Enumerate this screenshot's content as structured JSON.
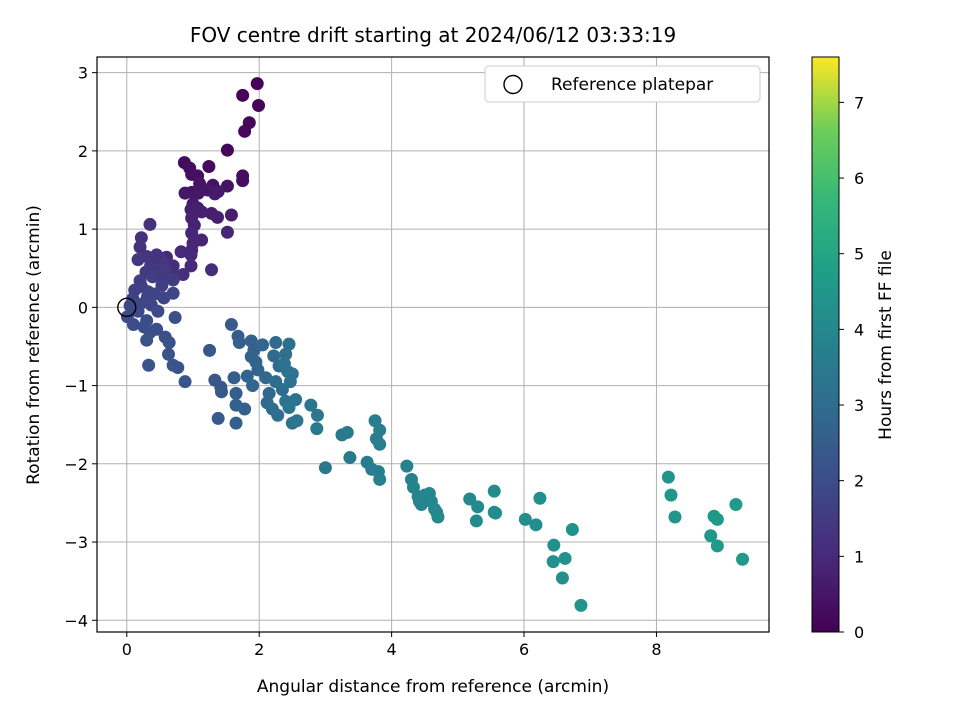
{
  "chart_data": {
    "type": "scatter",
    "title": "FOV centre drift starting at 2024/06/12 03:33:19",
    "xlabel": "Angular distance from reference (arcmin)",
    "ylabel": "Rotation from reference (arcmin)",
    "xlim": [
      -0.45,
      9.7
    ],
    "ylim": [
      -4.15,
      3.2
    ],
    "xticks": [
      0,
      2,
      4,
      6,
      8
    ],
    "yticks": [
      3,
      2,
      1,
      0,
      -1,
      -2,
      -3,
      -4
    ],
    "xtick_labels": [
      "0",
      "2",
      "4",
      "6",
      "8"
    ],
    "ytick_labels": [
      "3",
      "2",
      "1",
      "0",
      "−1",
      "−2",
      "−3",
      "−4"
    ],
    "grid": true,
    "legend": {
      "placement": "top-right",
      "entries": [
        "Reference platepar"
      ]
    },
    "colorbar": {
      "label": "Hours from first FF file",
      "colormap": "viridis",
      "range": [
        0,
        7.6
      ],
      "ticks": [
        0,
        1,
        2,
        3,
        4,
        5,
        6,
        7
      ],
      "tick_labels": [
        "0",
        "1",
        "2",
        "3",
        "4",
        "5",
        "6",
        "7"
      ]
    },
    "reference_point": {
      "x": 0,
      "y": 0
    },
    "points": [
      [
        1.97,
        2.86,
        0.05
      ],
      [
        1.75,
        2.71,
        0.1
      ],
      [
        1.99,
        2.58,
        0.12
      ],
      [
        1.85,
        2.36,
        0.15
      ],
      [
        1.78,
        2.25,
        0.17
      ],
      [
        1.52,
        2.01,
        0.2
      ],
      [
        1.24,
        1.8,
        0.22
      ],
      [
        0.87,
        1.85,
        0.25
      ],
      [
        0.95,
        1.78,
        0.28
      ],
      [
        1.75,
        1.68,
        0.3
      ],
      [
        0.98,
        1.7,
        0.32
      ],
      [
        1.75,
        1.62,
        0.35
      ],
      [
        1.07,
        1.68,
        0.37
      ],
      [
        1.3,
        1.56,
        0.4
      ],
      [
        1.52,
        1.55,
        0.42
      ],
      [
        1.1,
        1.58,
        0.45
      ],
      [
        0.98,
        1.47,
        0.47
      ],
      [
        0.88,
        1.46,
        0.5
      ],
      [
        1.08,
        1.46,
        0.52
      ],
      [
        1.38,
        1.48,
        0.55
      ],
      [
        1.22,
        1.5,
        0.57
      ],
      [
        1.33,
        1.45,
        0.6
      ],
      [
        1.0,
        1.32,
        0.62
      ],
      [
        1.07,
        1.27,
        0.65
      ],
      [
        1.28,
        1.2,
        0.67
      ],
      [
        1.58,
        1.18,
        0.7
      ],
      [
        0.97,
        1.25,
        0.72
      ],
      [
        1.37,
        1.15,
        0.75
      ],
      [
        1.13,
        1.22,
        0.77
      ],
      [
        0.98,
        1.14,
        0.8
      ],
      [
        1.02,
        1.05,
        0.82
      ],
      [
        1.52,
        0.96,
        0.85
      ],
      [
        0.98,
        0.95,
        0.87
      ],
      [
        1.13,
        0.86,
        0.9
      ],
      [
        1.0,
        0.82,
        0.92
      ],
      [
        0.98,
        0.73,
        0.95
      ],
      [
        0.97,
        0.67,
        0.97
      ],
      [
        0.82,
        0.71,
        1.0
      ],
      [
        0.6,
        0.64,
        1.02
      ],
      [
        0.97,
        0.53,
        1.05
      ],
      [
        0.7,
        0.53,
        1.07
      ],
      [
        1.28,
        0.48,
        1.1
      ],
      [
        0.85,
        0.42,
        1.12
      ],
      [
        0.73,
        0.4,
        1.15
      ],
      [
        0.55,
        0.35,
        1.17
      ],
      [
        0.35,
        1.06,
        1.2
      ],
      [
        0.22,
        0.89,
        1.22
      ],
      [
        0.2,
        0.77,
        1.25
      ],
      [
        0.45,
        0.67,
        1.27
      ],
      [
        0.5,
        0.62,
        1.3
      ],
      [
        0.3,
        0.65,
        1.32
      ],
      [
        0.55,
        0.55,
        1.35
      ],
      [
        0.36,
        0.53,
        1.37
      ],
      [
        0.17,
        0.61,
        1.4
      ],
      [
        0.42,
        0.48,
        1.42
      ],
      [
        0.29,
        0.45,
        1.45
      ],
      [
        0.58,
        0.46,
        1.47
      ],
      [
        0.5,
        0.4,
        1.5
      ],
      [
        0.7,
        0.35,
        1.52
      ],
      [
        0.39,
        0.39,
        1.55
      ],
      [
        0.2,
        0.34,
        1.57
      ],
      [
        0.22,
        0.27,
        1.6
      ],
      [
        0.53,
        0.28,
        1.62
      ],
      [
        0.12,
        0.22,
        1.65
      ],
      [
        0.32,
        0.2,
        1.67
      ],
      [
        0.09,
        0.11,
        1.7
      ],
      [
        0.31,
        0.13,
        1.72
      ],
      [
        0.56,
        0.12,
        1.75
      ],
      [
        0.42,
        0.17,
        1.77
      ],
      [
        0.7,
        0.18,
        1.8
      ],
      [
        0.37,
        0.03,
        1.82
      ],
      [
        0.2,
        0.04,
        1.85
      ],
      [
        0.05,
        0.02,
        1.87
      ],
      [
        0.17,
        -0.05,
        1.9
      ],
      [
        0.47,
        -0.05,
        1.92
      ],
      [
        0.01,
        -0.12,
        1.95
      ],
      [
        0.3,
        -0.17,
        1.97
      ],
      [
        0.1,
        -0.22,
        2.0
      ],
      [
        0.26,
        -0.25,
        2.02
      ],
      [
        0.45,
        -0.28,
        2.05
      ],
      [
        0.35,
        -0.32,
        2.07
      ],
      [
        0.58,
        -0.38,
        2.1
      ],
      [
        0.73,
        -0.13,
        2.12
      ],
      [
        0.3,
        -0.42,
        2.15
      ],
      [
        0.64,
        -0.45,
        2.17
      ],
      [
        0.63,
        -0.6,
        2.2
      ],
      [
        0.33,
        -0.74,
        2.22
      ],
      [
        0.77,
        -0.77,
        2.25
      ],
      [
        0.7,
        -0.74,
        2.27
      ],
      [
        0.88,
        -0.95,
        2.3
      ],
      [
        1.25,
        -0.55,
        2.32
      ],
      [
        1.33,
        -0.93,
        2.35
      ],
      [
        1.42,
        -1.02,
        2.37
      ],
      [
        1.43,
        -1.08,
        2.4
      ],
      [
        1.38,
        -1.42,
        2.42
      ],
      [
        1.58,
        -0.22,
        2.45
      ],
      [
        1.68,
        -0.37,
        2.47
      ],
      [
        1.7,
        -0.45,
        2.5
      ],
      [
        1.62,
        -0.9,
        2.52
      ],
      [
        1.65,
        -1.1,
        2.55
      ],
      [
        1.65,
        -1.25,
        2.57
      ],
      [
        1.65,
        -1.48,
        2.6
      ],
      [
        1.78,
        -1.3,
        2.62
      ],
      [
        1.88,
        -0.43,
        2.65
      ],
      [
        1.92,
        -0.55,
        2.67
      ],
      [
        1.88,
        -0.63,
        2.7
      ],
      [
        1.95,
        -0.7,
        2.72
      ],
      [
        1.82,
        -0.88,
        2.75
      ],
      [
        1.98,
        -0.8,
        2.77
      ],
      [
        1.9,
        -1.0,
        2.8
      ],
      [
        2.05,
        -0.48,
        2.82
      ],
      [
        2.1,
        -0.9,
        2.85
      ],
      [
        2.15,
        -1.1,
        2.87
      ],
      [
        2.12,
        -1.22,
        2.9
      ],
      [
        2.25,
        -0.45,
        2.92
      ],
      [
        2.22,
        -0.62,
        2.95
      ],
      [
        2.3,
        -0.75,
        2.97
      ],
      [
        2.25,
        -0.95,
        3.0
      ],
      [
        2.35,
        -1.05,
        3.02
      ],
      [
        2.2,
        -1.3,
        3.05
      ],
      [
        2.28,
        -1.38,
        3.07
      ],
      [
        2.45,
        -0.47,
        3.1
      ],
      [
        2.4,
        -0.6,
        3.12
      ],
      [
        2.38,
        -0.72,
        3.15
      ],
      [
        2.43,
        -0.82,
        3.17
      ],
      [
        2.5,
        -0.85,
        3.2
      ],
      [
        2.47,
        -0.95,
        3.22
      ],
      [
        2.4,
        -1.2,
        3.25
      ],
      [
        2.55,
        -1.18,
        3.27
      ],
      [
        2.5,
        -1.48,
        3.3
      ],
      [
        2.57,
        -1.45,
        3.32
      ],
      [
        2.45,
        -1.28,
        3.35
      ],
      [
        2.78,
        -1.25,
        3.37
      ],
      [
        2.88,
        -1.38,
        3.4
      ],
      [
        2.87,
        -1.55,
        3.42
      ],
      [
        3.0,
        -2.05,
        3.45
      ],
      [
        3.25,
        -1.63,
        3.47
      ],
      [
        3.33,
        -1.6,
        3.5
      ],
      [
        3.37,
        -1.92,
        3.52
      ],
      [
        3.63,
        -1.98,
        3.55
      ],
      [
        3.7,
        -2.07,
        3.57
      ],
      [
        3.75,
        -1.45,
        3.6
      ],
      [
        3.77,
        -1.68,
        3.62
      ],
      [
        3.82,
        -1.57,
        3.65
      ],
      [
        3.82,
        -1.75,
        3.67
      ],
      [
        3.8,
        -2.1,
        3.7
      ],
      [
        3.82,
        -2.2,
        3.72
      ],
      [
        4.23,
        -2.03,
        3.75
      ],
      [
        4.3,
        -2.2,
        3.77
      ],
      [
        4.33,
        -2.3,
        3.8
      ],
      [
        4.4,
        -2.42,
        3.82
      ],
      [
        4.42,
        -2.48,
        3.85
      ],
      [
        4.45,
        -2.52,
        3.87
      ],
      [
        4.5,
        -2.4,
        3.9
      ],
      [
        4.57,
        -2.38,
        3.92
      ],
      [
        4.6,
        -2.48,
        3.95
      ],
      [
        4.65,
        -2.58,
        3.97
      ],
      [
        4.68,
        -2.62,
        4.0
      ],
      [
        4.7,
        -2.68,
        4.02
      ],
      [
        5.18,
        -2.45,
        4.05
      ],
      [
        5.3,
        -2.55,
        4.07
      ],
      [
        5.28,
        -2.73,
        4.1
      ],
      [
        5.55,
        -2.35,
        4.12
      ],
      [
        5.55,
        -2.62,
        4.15
      ],
      [
        5.57,
        -2.63,
        4.17
      ],
      [
        6.02,
        -2.71,
        4.2
      ],
      [
        6.18,
        -2.78,
        4.22
      ],
      [
        6.24,
        -2.44,
        4.25
      ],
      [
        6.44,
        -3.25,
        4.27
      ],
      [
        6.45,
        -3.04,
        4.3
      ],
      [
        6.58,
        -3.46,
        4.32
      ],
      [
        6.62,
        -3.21,
        4.35
      ],
      [
        6.73,
        -2.84,
        4.37
      ],
      [
        6.86,
        -3.81,
        4.4
      ],
      [
        8.18,
        -2.17,
        4.45
      ],
      [
        8.22,
        -2.4,
        4.47
      ],
      [
        8.28,
        -2.68,
        4.5
      ],
      [
        8.82,
        -2.92,
        4.52
      ],
      [
        8.87,
        -2.67,
        4.55
      ],
      [
        8.92,
        -2.71,
        4.57
      ],
      [
        9.2,
        -2.52,
        4.6
      ],
      [
        9.3,
        -3.22,
        4.62
      ],
      [
        8.92,
        -3.05,
        4.65
      ]
    ]
  }
}
